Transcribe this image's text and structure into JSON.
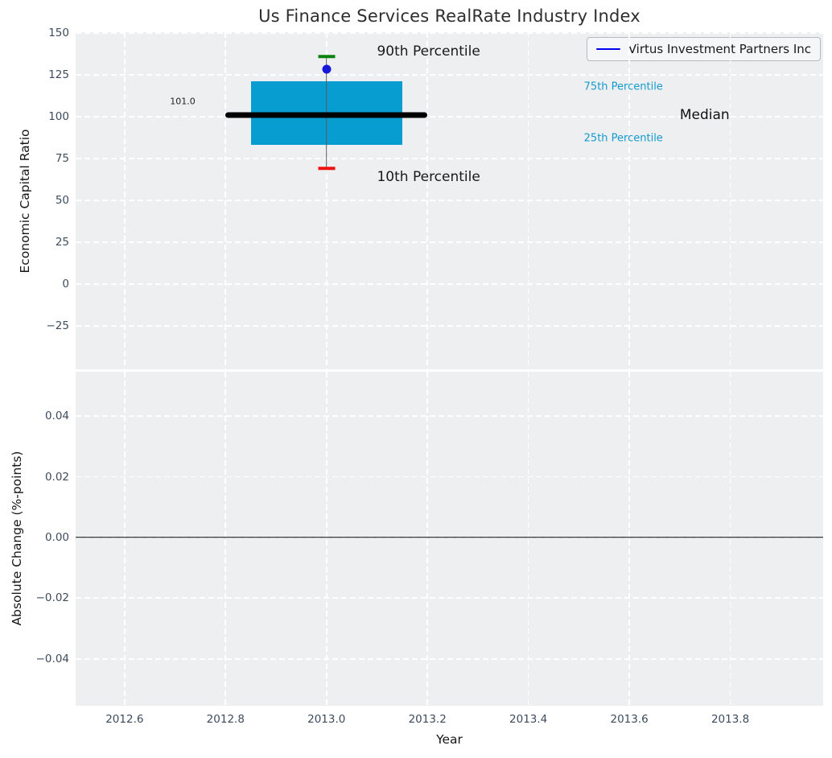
{
  "figure": {
    "background": "#ffffff",
    "axes_background": "#edeff1",
    "grid_color": "#ffffff",
    "tick_color": "#3d4b5c"
  },
  "chart_data": [
    {
      "type": "box",
      "title": "Us Finance Services RealRate Industry Index",
      "ylabel": "Economic Capital Ratio",
      "xlim": [
        2012.503,
        2013.984
      ],
      "ylim": [
        -51,
        150.5
      ],
      "grid": true,
      "legend_position": "upper right",
      "yticks": [
        {
          "value": 150,
          "label": "150"
        },
        {
          "value": 125,
          "label": "125"
        },
        {
          "value": 100,
          "label": "100"
        },
        {
          "value": 75,
          "label": "75"
        },
        {
          "value": 50,
          "label": "50"
        },
        {
          "value": 25,
          "label": "25"
        },
        {
          "value": 0,
          "label": "0"
        },
        {
          "value": -25,
          "label": "−25"
        }
      ],
      "xticks": [
        {
          "value": 2012.6,
          "label": "2012.6"
        },
        {
          "value": 2012.8,
          "label": "2012.8"
        },
        {
          "value": 2013.0,
          "label": "2013.0"
        },
        {
          "value": 2013.2,
          "label": "2013.2"
        },
        {
          "value": 2013.4,
          "label": "2013.4"
        },
        {
          "value": 2013.6,
          "label": "2013.6"
        },
        {
          "value": 2013.8,
          "label": "2013.8"
        }
      ],
      "show_xtick_labels": false,
      "box": {
        "x": 2013.0,
        "box_left": 2012.85,
        "box_right": 2013.15,
        "q1": 83,
        "median": 101,
        "q3": 121,
        "p10": 69,
        "p90": 136,
        "median_span_left": 2012.8,
        "median_span_right": 2013.2,
        "median_label": "101.0",
        "box_color": "#089dd1",
        "median_color": "#000000",
        "whisker_color": "#5a5a5a",
        "p90_color": "#0b830e",
        "p10_color": "#ee1111"
      },
      "company_point": {
        "label": "Virtus Investment Partners Inc",
        "x": 2013.0,
        "y": 128.5,
        "color": "#1717d9"
      },
      "legend": {
        "label": "Virtus Investment Partners Inc",
        "line_color": "#0000f0"
      },
      "annotations": [
        {
          "text": "90th Percentile",
          "x": 2013.1,
          "y": 139,
          "size": 17,
          "color": "#1a1a1a",
          "ha": "left"
        },
        {
          "text": "10th Percentile",
          "x": 2013.1,
          "y": 64,
          "size": 17,
          "color": "#1a1a1a",
          "ha": "left"
        },
        {
          "text": "75th Percentile",
          "x": 2013.51,
          "y": 118,
          "size": 13,
          "color": "#149bcd",
          "ha": "left"
        },
        {
          "text": "25th Percentile",
          "x": 2013.51,
          "y": 87,
          "size": 13,
          "color": "#149bcd",
          "ha": "left"
        },
        {
          "text": "Median",
          "x": 2013.7,
          "y": 101,
          "size": 17,
          "color": "#111111",
          "ha": "left"
        },
        {
          "text": "101.0",
          "x": 2012.69,
          "y": 109,
          "size": 11,
          "color": "#222222",
          "ha": "left"
        }
      ]
    },
    {
      "type": "line",
      "ylabel": "Absolute Change (%-points)",
      "xlabel": "Year",
      "xlim": [
        2012.503,
        2013.984
      ],
      "ylim": [
        -0.0554,
        0.0546
      ],
      "grid": true,
      "yticks": [
        {
          "value": 0.04,
          "label": "0.04"
        },
        {
          "value": 0.02,
          "label": "0.02"
        },
        {
          "value": 0.0,
          "label": "0.00"
        },
        {
          "value": -0.02,
          "label": "−0.02"
        },
        {
          "value": -0.04,
          "label": "−0.04"
        }
      ],
      "xticks": [
        {
          "value": 2012.6,
          "label": "2012.6"
        },
        {
          "value": 2012.8,
          "label": "2012.8"
        },
        {
          "value": 2013.0,
          "label": "2013.0"
        },
        {
          "value": 2013.2,
          "label": "2013.2"
        },
        {
          "value": 2013.4,
          "label": "2013.4"
        },
        {
          "value": 2013.6,
          "label": "2013.6"
        },
        {
          "value": 2013.8,
          "label": "2013.8"
        }
      ],
      "show_xtick_labels": true,
      "zero_line": {
        "value": 0,
        "color": "#000000"
      }
    }
  ]
}
